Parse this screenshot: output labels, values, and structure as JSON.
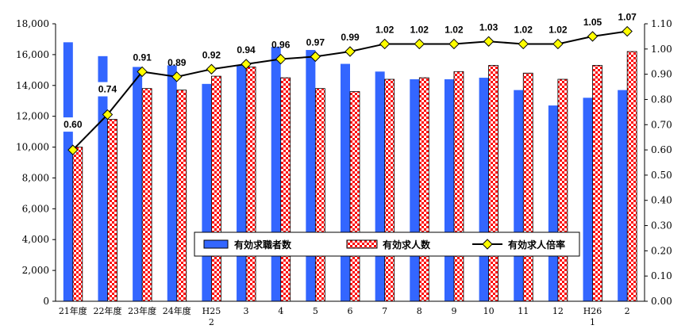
{
  "chart_data": {
    "type": "bar",
    "categories": [
      "21年度",
      "22年度",
      "23年度",
      "24年度",
      "H25",
      "3",
      "4",
      "5",
      "6",
      "7",
      "8",
      "9",
      "10",
      "11",
      "12",
      "H26",
      "2"
    ],
    "category_sublabels": [
      "",
      "",
      "",
      "",
      "2",
      "",
      "",
      "",
      "",
      "",
      "",
      "",
      "",
      "",
      "",
      "1",
      ""
    ],
    "series": [
      {
        "name": "有効求職者数",
        "type": "bar",
        "axis": "left",
        "color": "#3366ff",
        "values": [
          16800,
          15900,
          15200,
          15300,
          14100,
          15300,
          16500,
          16300,
          15400,
          14900,
          14400,
          14400,
          14500,
          13700,
          12700,
          13200,
          13700
        ]
      },
      {
        "name": "有効求人数",
        "type": "bar",
        "axis": "left",
        "color": "#ff0000",
        "pattern": "red-white-check",
        "values": [
          10000,
          11800,
          13800,
          13700,
          14600,
          15200,
          14500,
          13800,
          13600,
          14400,
          14500,
          14900,
          15300,
          14800,
          14400,
          15300,
          16200
        ]
      },
      {
        "name": "有効求人倍率",
        "type": "line",
        "axis": "right",
        "color": "#000000",
        "marker_color": "#ffff00",
        "values": [
          0.6,
          0.74,
          0.91,
          0.89,
          0.92,
          0.94,
          0.96,
          0.97,
          0.99,
          1.02,
          1.02,
          1.02,
          1.03,
          1.02,
          1.02,
          1.05,
          1.07
        ]
      }
    ],
    "data_labels": [
      "0.60",
      "0.74",
      "0.91",
      "0.89",
      "0.92",
      "0.94",
      "0.96",
      "0.97",
      "0.99",
      "1.02",
      "1.02",
      "1.02",
      "1.03",
      "1.02",
      "1.02",
      "1.05",
      "1.07"
    ],
    "y_left": {
      "ylim": [
        0,
        18000
      ],
      "ticks": [
        "0",
        "2,000",
        "4,000",
        "6,000",
        "8,000",
        "10,000",
        "12,000",
        "14,000",
        "16,000",
        "18,000"
      ]
    },
    "y_right": {
      "ylim": [
        0,
        1.1
      ],
      "ticks": [
        "0.00",
        "0.10",
        "0.20",
        "0.30",
        "0.40",
        "0.50",
        "0.60",
        "0.70",
        "0.80",
        "0.90",
        "1.00",
        "1.10"
      ]
    },
    "legend": {
      "placement": "bottom-right-inside",
      "items": [
        "有効求職者数",
        "有効求人数",
        "有効求人倍率"
      ]
    },
    "grid": false
  }
}
